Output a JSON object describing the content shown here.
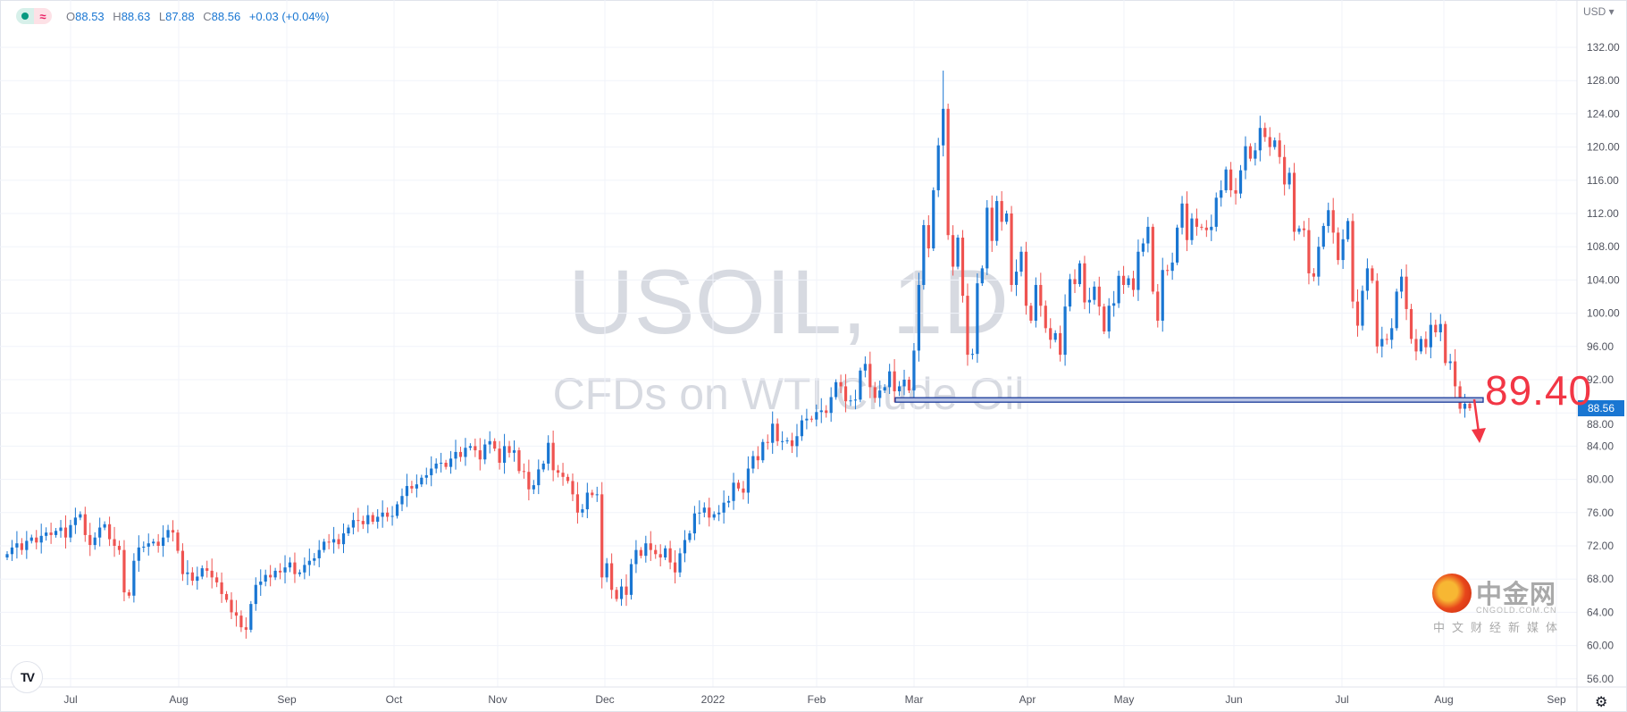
{
  "legend": {
    "open_label": "O",
    "open": "88.53",
    "high_label": "H",
    "high": "88.63",
    "low_label": "L",
    "low": "87.88",
    "close_label": "C",
    "close": "88.56",
    "change": "+0.03 (+0.04%)",
    "status_icon": "green-dot-icon",
    "approx_icon": "≈"
  },
  "watermark": {
    "symbol": "USOIL, 1D",
    "description": "CFDs on WTI Crude Oil"
  },
  "currency_selector": "USD ▾",
  "last_price_tag": "88.56",
  "annotation": {
    "level_label": "89.40",
    "level": 89.4,
    "arrow": "down-arrow",
    "color": "#f23645"
  },
  "branding": {
    "logo_text": "中金网",
    "logo_url_text": "CNGOLD.COM.CN",
    "logo_tagline": "中文财经新媒体",
    "tv_logo": "TV"
  },
  "colors": {
    "up": "#1976d2",
    "down": "#ef5350",
    "grid": "#f0f3fa",
    "level_line": "#1a3a9a"
  },
  "chart_data": {
    "type": "candlestick",
    "title": "USOIL, 1D",
    "subtitle": "CFDs on WTI Crude Oil",
    "ylabel": "USD",
    "ylim": [
      54,
      133.5
    ],
    "grid": true,
    "y_ticks": [
      "132.00",
      "128.00",
      "124.00",
      "120.00",
      "116.00",
      "112.00",
      "108.00",
      "104.00",
      "100.00",
      "96.00",
      "92.00",
      "88.00",
      "84.00",
      "80.00",
      "76.00",
      "72.00",
      "68.00",
      "64.00",
      "60.00",
      "56.00"
    ],
    "x_ticks": [
      "Jul",
      "Aug",
      "Sep",
      "Oct",
      "Nov",
      "Dec",
      "2022",
      "Feb",
      "Mar",
      "Apr",
      "May",
      "Jun",
      "Jul",
      "Aug",
      "Sep"
    ],
    "close": [
      71.0,
      71.8,
      72.3,
      71.5,
      72.6,
      73.0,
      72.4,
      73.2,
      73.6,
      73.3,
      73.8,
      74.2,
      73.0,
      74.5,
      75.4,
      75.8,
      73.3,
      72.1,
      73.0,
      74.2,
      74.6,
      72.8,
      72.0,
      71.5,
      66.4,
      66.0,
      70.2,
      71.8,
      71.9,
      72.3,
      72.5,
      72.0,
      73.0,
      73.9,
      73.6,
      71.4,
      68.6,
      68.8,
      67.8,
      68.3,
      69.3,
      69.0,
      68.2,
      67.6,
      66.2,
      65.5,
      64.0,
      63.6,
      62.2,
      61.9,
      65.0,
      67.3,
      67.7,
      68.5,
      68.2,
      69.0,
      68.8,
      69.4,
      70.0,
      68.6,
      68.8,
      69.7,
      70.2,
      70.5,
      71.5,
      72.5,
      72.4,
      72.8,
      72.2,
      73.5,
      74.2,
      75.1,
      75.0,
      74.6,
      75.7,
      74.9,
      75.5,
      76.0,
      75.5,
      75.6,
      77.0,
      78.0,
      79.2,
      78.9,
      79.4,
      80.2,
      80.5,
      81.3,
      81.9,
      82.0,
      81.5,
      82.5,
      83.3,
      82.7,
      83.8,
      84.0,
      83.5,
      82.4,
      84.2,
      84.6,
      83.7,
      82.0,
      84.0,
      83.2,
      83.5,
      81.0,
      80.9,
      78.8,
      79.3,
      81.2,
      81.9,
      84.4,
      81.1,
      80.8,
      80.3,
      79.8,
      78.2,
      76.0,
      76.4,
      78.4,
      78.1,
      78.2,
      68.2,
      69.9,
      66.7,
      65.6,
      67.1,
      66.1,
      69.8,
      71.5,
      70.8,
      72.3,
      71.5,
      71.0,
      70.6,
      71.7,
      70.0,
      68.8,
      71.1,
      72.7,
      73.5,
      75.9,
      76.0,
      76.6,
      75.4,
      75.8,
      76.0,
      77.2,
      77.4,
      79.6,
      78.9,
      78.4,
      81.3,
      82.8,
      82.3,
      84.5,
      84.4,
      86.7,
      84.6,
      84.6,
      84.7,
      84.0,
      85.2,
      87.1,
      87.3,
      87.2,
      88.1,
      88.3,
      88.0,
      89.9,
      91.7,
      91.2,
      89.4,
      89.5,
      89.6,
      93.1,
      93.9,
      91.1,
      89.8,
      90.7,
      91.1,
      93.0,
      90.6,
      91.2,
      92.0,
      90.7,
      95.5,
      103.4,
      110.6,
      107.8,
      114.8,
      120.2,
      124.6,
      109.4,
      105.6,
      109.1,
      102.1,
      95.0,
      95.1,
      103.6,
      105.4,
      112.7,
      108.7,
      113.5,
      111.0,
      112.0,
      103.4,
      105.0,
      107.4,
      100.9,
      99.1,
      103.4,
      100.9,
      98.2,
      96.8,
      97.6,
      95.0,
      100.8,
      104.1,
      103.5,
      106.0,
      101.3,
      101.6,
      103.2,
      100.8,
      97.8,
      100.9,
      101.2,
      104.5,
      103.4,
      104.2,
      102.8,
      107.4,
      108.4,
      110.4,
      102.6,
      99.1,
      105.2,
      105.1,
      106.1,
      110.3,
      113.2,
      108.8,
      111.4,
      110.4,
      110.3,
      110.0,
      110.4,
      113.9,
      114.8,
      117.3,
      114.8,
      114.4,
      117.2,
      120.1,
      118.6,
      119.6,
      122.3,
      121.2,
      120.0,
      120.8,
      118.8,
      115.5,
      116.9,
      109.8,
      110.2,
      110.0,
      104.8,
      104.4,
      108.0,
      110.5,
      112.4,
      109.7,
      106.4,
      108.9,
      111.1,
      101.4,
      98.5,
      102.7,
      105.4,
      103.9,
      96.0,
      96.9,
      96.8,
      98.2,
      102.6,
      104.4,
      100.5,
      96.9,
      95.4,
      96.9,
      95.9,
      98.6,
      97.7,
      98.7,
      94.0,
      94.2,
      91.2,
      88.5,
      89.1,
      88.56
    ],
    "notable_extremes": {
      "high_max": 129.2,
      "low_min": 61.6
    }
  }
}
